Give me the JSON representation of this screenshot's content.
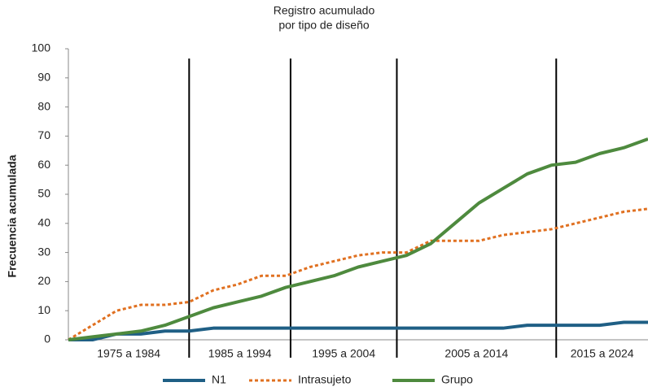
{
  "chart_data": {
    "type": "line",
    "title": [
      "Registro acumulado",
      "por tipo de diseño"
    ],
    "y_label": "Frecuencia acumulada",
    "x": [
      0,
      5,
      10,
      15,
      20,
      25,
      30,
      35,
      40,
      45,
      50,
      55,
      60,
      65,
      70,
      75,
      80,
      85,
      90,
      95,
      100,
      105,
      110,
      115,
      120
    ],
    "xlim": [
      0,
      120
    ],
    "periods": [
      "1975 a 1984",
      "1985 a 1994",
      "1995 a 2004",
      "2005 a 2014",
      "2015 a 2024"
    ],
    "period_ends": [
      25,
      46,
      68,
      101,
      120
    ],
    "ylim": [
      0,
      100
    ],
    "yticks": [
      0,
      10,
      20,
      30,
      40,
      50,
      60,
      70,
      80,
      90,
      100
    ],
    "legend": "bottom",
    "series": [
      {
        "name": "N1",
        "color": "#1f5f85",
        "style": "solid",
        "values": [
          0,
          0,
          2,
          2,
          3,
          3,
          4,
          4,
          4,
          4,
          4,
          4,
          4,
          4,
          4,
          4,
          4,
          4,
          4,
          5,
          5,
          5,
          5,
          6,
          6
        ]
      },
      {
        "name": "Intrasujeto",
        "color": "#e07020",
        "style": "dotted",
        "values": [
          0,
          5,
          10,
          12,
          12,
          13,
          17,
          19,
          22,
          22,
          25,
          27,
          29,
          30,
          30,
          34,
          34,
          34,
          36,
          37,
          38,
          40,
          42,
          44,
          45
        ]
      },
      {
        "name": "Grupo",
        "color": "#4e8a3e",
        "style": "solid",
        "values": [
          0,
          1,
          2,
          3,
          5,
          8,
          11,
          13,
          15,
          18,
          20,
          22,
          25,
          27,
          29,
          33,
          40,
          47,
          52,
          57,
          60,
          61,
          64,
          66,
          69
        ]
      }
    ]
  }
}
